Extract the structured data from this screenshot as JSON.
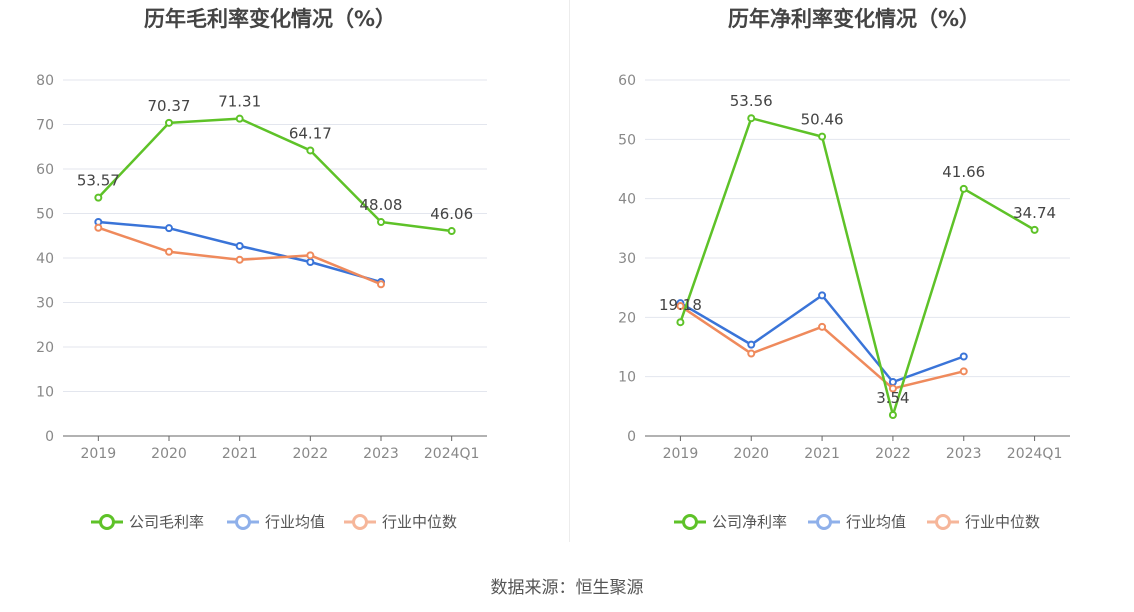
{
  "source_label": "数据来源：恒生聚源",
  "colors": {
    "company": "#5ec228",
    "industry_avg": "#3a74d8",
    "industry_median": "#ef8a5c",
    "legend_avg": "#8fb0ea",
    "legend_median": "#f6b69a",
    "grid": "#e3e6ee",
    "axis": "#666666",
    "tick_text": "#888888",
    "label_text": "#444444",
    "title_text": "#444444"
  },
  "chart_data": [
    {
      "type": "line",
      "title": "历年毛利率变化情况（%）",
      "xlabel": "",
      "ylabel": "",
      "categories": [
        "2019",
        "2020",
        "2021",
        "2022",
        "2023",
        "2024Q1"
      ],
      "ylim": [
        0,
        80
      ],
      "yticks": [
        0,
        10,
        20,
        30,
        40,
        50,
        60,
        70,
        80
      ],
      "grid": true,
      "legend_position": "bottom-center",
      "series": [
        {
          "name": "公司毛利率",
          "key": "company",
          "show_labels": true,
          "values": [
            53.57,
            70.37,
            71.31,
            64.17,
            48.08,
            46.06
          ],
          "labels": [
            "53.57",
            "70.37",
            "71.31",
            "64.17",
            "48.08",
            "46.06"
          ]
        },
        {
          "name": "行业均值",
          "key": "industry_avg",
          "show_labels": false,
          "values": [
            48.1,
            46.7,
            42.7,
            39.1,
            34.6,
            null
          ]
        },
        {
          "name": "行业中位数",
          "key": "industry_median",
          "show_labels": false,
          "values": [
            46.8,
            41.4,
            39.6,
            40.6,
            34.1,
            null
          ]
        }
      ]
    },
    {
      "type": "line",
      "title": "历年净利率变化情况（%）",
      "xlabel": "",
      "ylabel": "",
      "categories": [
        "2019",
        "2020",
        "2021",
        "2022",
        "2023",
        "2024Q1"
      ],
      "ylim": [
        0,
        60
      ],
      "yticks": [
        0,
        10,
        20,
        30,
        40,
        50,
        60
      ],
      "grid": true,
      "legend_position": "bottom-center",
      "series": [
        {
          "name": "公司净利率",
          "key": "company",
          "show_labels": true,
          "values": [
            19.18,
            53.56,
            50.46,
            3.54,
            41.66,
            34.74
          ],
          "labels": [
            "19.18",
            "53.56",
            "50.46",
            "3.54",
            "41.66",
            "34.74"
          ]
        },
        {
          "name": "行业均值",
          "key": "industry_avg",
          "show_labels": false,
          "values": [
            22.4,
            15.4,
            23.7,
            9.1,
            13.4,
            null
          ]
        },
        {
          "name": "行业中位数",
          "key": "industry_median",
          "show_labels": false,
          "values": [
            21.9,
            13.9,
            18.4,
            8.0,
            10.9,
            null
          ]
        }
      ]
    }
  ]
}
